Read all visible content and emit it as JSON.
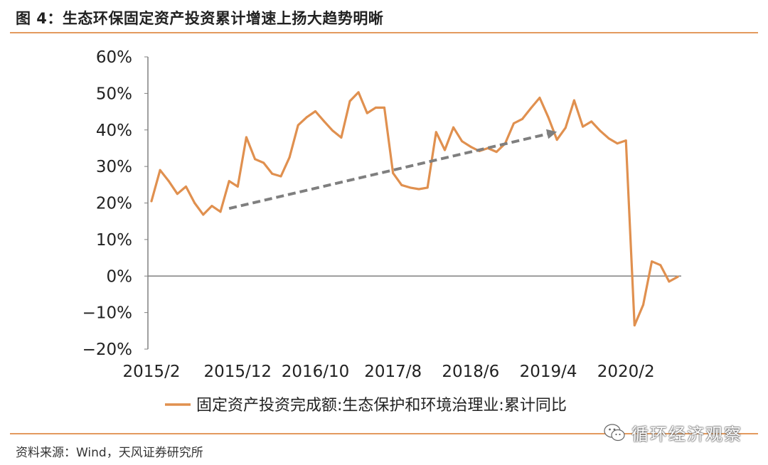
{
  "header": {
    "title": "图 4：生态环保固定资产投资累计增速上扬大趋势明晰"
  },
  "footer": {
    "source": "资料来源：Wind，天风证券研究所"
  },
  "watermark": {
    "text": "循环经济观察",
    "icon": "wechat-icon"
  },
  "colors": {
    "line": "#e0904f",
    "arrow": "#7f7f7f",
    "rule": "#e39a5e",
    "axis": "#808080"
  },
  "chart_data": {
    "type": "line",
    "title": "",
    "xlabel": "",
    "ylabel": "",
    "ylim": [
      -20,
      60
    ],
    "y_ticks": [
      "60%",
      "50%",
      "40%",
      "30%",
      "20%",
      "10%",
      "0%",
      "−10%",
      "−20%"
    ],
    "x_ticks": [
      "2015/2",
      "2015/12",
      "2016/10",
      "2017/8",
      "2018/6",
      "2019/4",
      "2020/2"
    ],
    "grid": false,
    "legend_position": "bottom",
    "series": [
      {
        "name": "固定资产投资完成额:生态保护和环境治理业:累计同比",
        "x": [
          "2015/2",
          "2015/3",
          "2015/4",
          "2015/5",
          "2015/6",
          "2015/7",
          "2015/8",
          "2015/9",
          "2015/10",
          "2015/11",
          "2015/12",
          "2016/2",
          "2016/3",
          "2016/4",
          "2016/5",
          "2016/6",
          "2016/7",
          "2016/8",
          "2016/9",
          "2016/10",
          "2016/11",
          "2016/12",
          "2017/2",
          "2017/3",
          "2017/4",
          "2017/5",
          "2017/6",
          "2017/7",
          "2017/8",
          "2017/9",
          "2017/10",
          "2017/11",
          "2017/12",
          "2018/2",
          "2018/3",
          "2018/4",
          "2018/5",
          "2018/6",
          "2018/7",
          "2018/8",
          "2018/9",
          "2018/10",
          "2018/11",
          "2018/12",
          "2019/2",
          "2019/3",
          "2019/4",
          "2019/5",
          "2019/6",
          "2019/7",
          "2019/8",
          "2019/9",
          "2019/10",
          "2019/11",
          "2019/12",
          "2020/2",
          "2020/3",
          "2020/4",
          "2020/5",
          "2020/6",
          "2020/7",
          "2020/8"
        ],
        "values": [
          20.5,
          29,
          26,
          22.5,
          24.5,
          20,
          16.8,
          19.2,
          17.6,
          26,
          24.5,
          38,
          32,
          31,
          28,
          27.3,
          32.5,
          41.3,
          43.5,
          45.1,
          42.4,
          39.8,
          37.9,
          47.9,
          50.3,
          44.6,
          46.1,
          46.1,
          28.2,
          24.9,
          24.2,
          23.8,
          24.2,
          39.4,
          34.5,
          40.7,
          36.9,
          35.4,
          34.2,
          35.0,
          34.0,
          36.3,
          41.8,
          43.0,
          46,
          48.8,
          43.5,
          37.3,
          40.6,
          48.1,
          40.9,
          42.3,
          39.8,
          37.7,
          36.3,
          37.1,
          -13.5,
          -7.9,
          4,
          3,
          -1.5,
          -0.2
        ]
      }
    ],
    "trend_arrow": {
      "from": {
        "x": "2015/11",
        "y": 18.5
      },
      "to": {
        "x": "2019/5",
        "y": 39.5
      }
    }
  }
}
